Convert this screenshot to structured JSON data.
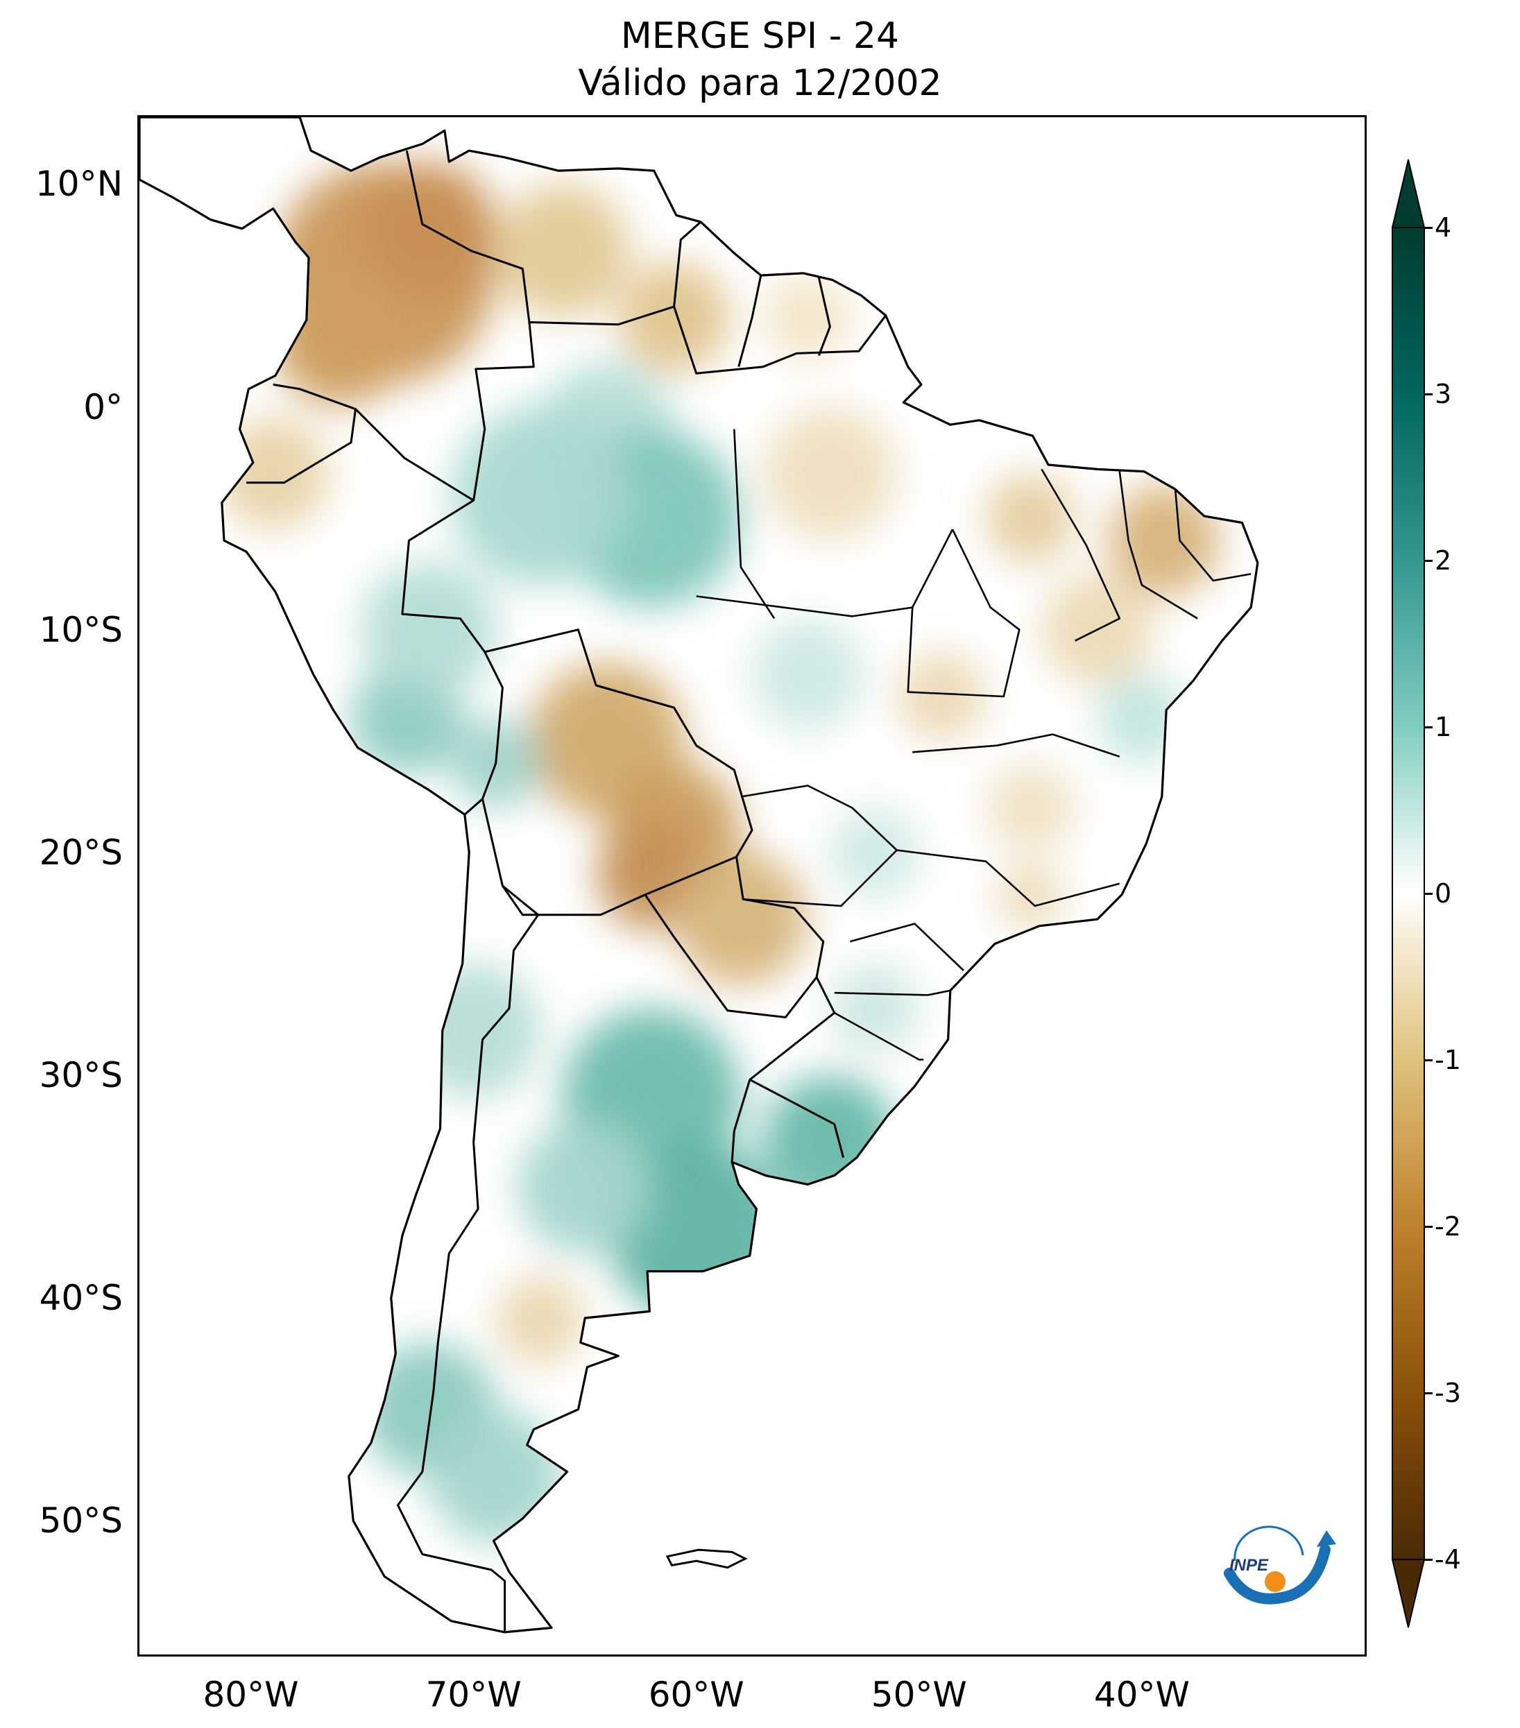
{
  "title": {
    "line1": "MERGE   SPI - 24",
    "line2": "Válido para 12/2002"
  },
  "axes": {
    "lat_ticks": [
      {
        "value": 10,
        "label": "10°N"
      },
      {
        "value": 0,
        "label": "0°"
      },
      {
        "value": -10,
        "label": "10°S"
      },
      {
        "value": -20,
        "label": "20°S"
      },
      {
        "value": -30,
        "label": "30°S"
      },
      {
        "value": -40,
        "label": "40°S"
      },
      {
        "value": -50,
        "label": "50°S"
      }
    ],
    "lon_ticks": [
      {
        "value": -80,
        "label": "80°W"
      },
      {
        "value": -70,
        "label": "70°W"
      },
      {
        "value": -60,
        "label": "60°W"
      },
      {
        "value": -50,
        "label": "50°W"
      },
      {
        "value": -40,
        "label": "40°W"
      }
    ],
    "lon_range": [
      -85,
      -30
    ],
    "lat_range": [
      -56,
      13
    ]
  },
  "colorbar": {
    "ticks": [
      "4",
      "3",
      "2",
      "1",
      "0",
      "-1",
      "-2",
      "-3",
      "-4"
    ],
    "range": [
      -4,
      4
    ],
    "extend": "both",
    "colormap": "BrBG",
    "colors_low_to_high": [
      "#4a2a05",
      "#8c510a",
      "#bf812d",
      "#dfc27d",
      "#f6e8c3",
      "#ffffff",
      "#c7eae5",
      "#80cdc1",
      "#35978f",
      "#01665e",
      "#003c30"
    ]
  },
  "logo": {
    "text": "INPE",
    "colors": {
      "blue": "#1a6fb5",
      "orange": "#f0901a"
    }
  }
}
